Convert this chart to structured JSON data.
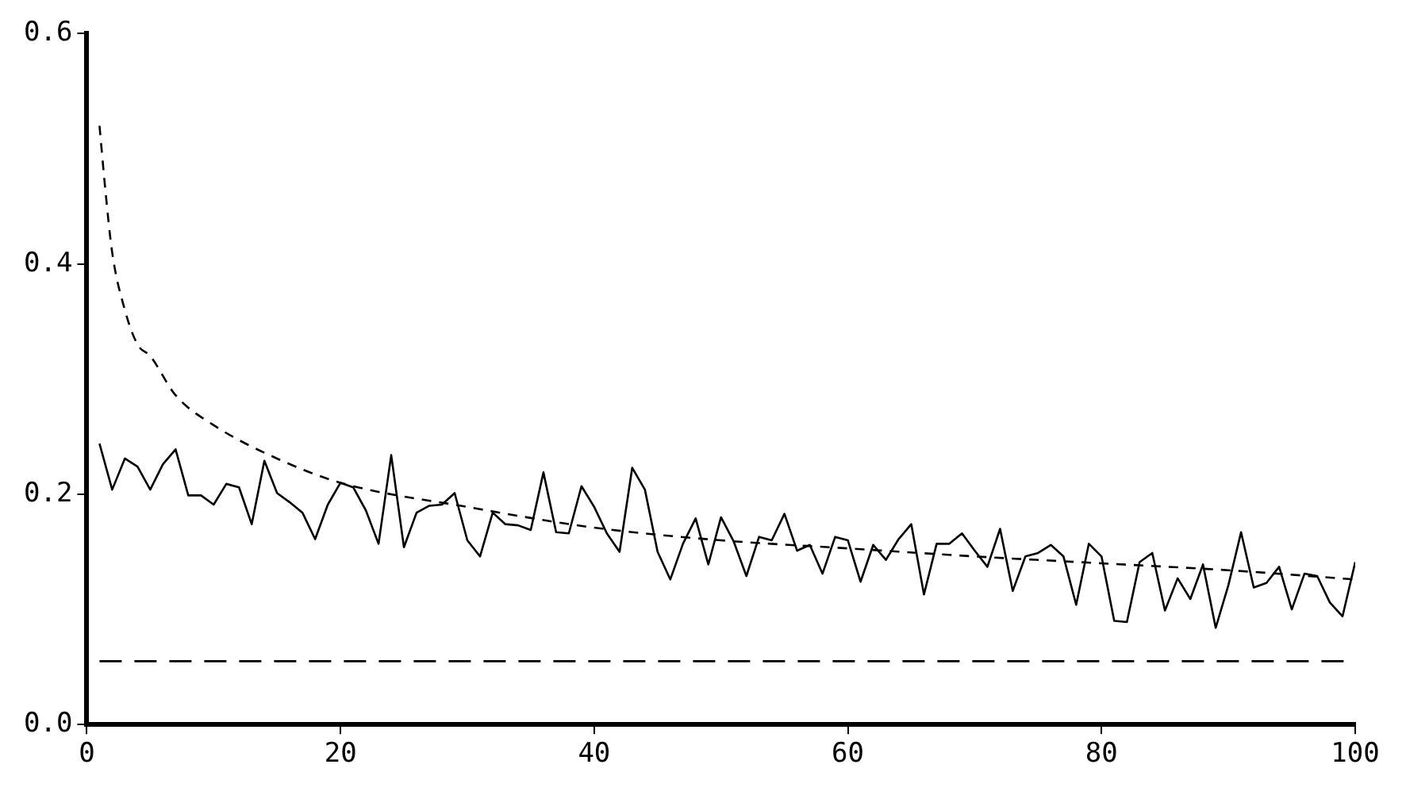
{
  "chart_data": {
    "type": "line",
    "x": [
      1,
      2,
      3,
      4,
      5,
      6,
      7,
      8,
      9,
      10,
      11,
      12,
      13,
      14,
      15,
      16,
      17,
      18,
      19,
      20,
      21,
      22,
      23,
      24,
      25,
      26,
      27,
      28,
      29,
      30,
      31,
      32,
      33,
      34,
      35,
      36,
      37,
      38,
      39,
      40,
      41,
      42,
      43,
      44,
      45,
      46,
      47,
      48,
      49,
      50,
      51,
      52,
      53,
      54,
      55,
      56,
      57,
      58,
      59,
      60,
      61,
      62,
      63,
      64,
      65,
      66,
      67,
      68,
      69,
      70,
      71,
      72,
      73,
      74,
      75,
      76,
      77,
      78,
      79,
      80,
      81,
      82,
      83,
      84,
      85,
      86,
      87,
      88,
      89,
      90,
      91,
      92,
      93,
      94,
      95,
      96,
      97,
      98,
      99,
      100
    ],
    "series": [
      {
        "color": "#000000",
        "line_style": "solid",
        "values": [
          0.244,
          0.204,
          0.231,
          0.224,
          0.204,
          0.226,
          0.239,
          0.199,
          0.199,
          0.191,
          0.209,
          0.206,
          0.174,
          0.229,
          0.201,
          0.193,
          0.184,
          0.161,
          0.191,
          0.21,
          0.206,
          0.186,
          0.157,
          0.234,
          0.154,
          0.184,
          0.19,
          0.191,
          0.201,
          0.16,
          0.146,
          0.184,
          0.174,
          0.173,
          0.169,
          0.219,
          0.167,
          0.166,
          0.207,
          0.189,
          0.166,
          0.15,
          0.223,
          0.204,
          0.15,
          0.126,
          0.157,
          0.179,
          0.139,
          0.18,
          0.159,
          0.129,
          0.163,
          0.16,
          0.183,
          0.151,
          0.156,
          0.131,
          0.163,
          0.16,
          0.124,
          0.156,
          0.143,
          0.161,
          0.174,
          0.113,
          0.157,
          0.157,
          0.166,
          0.151,
          0.137,
          0.17,
          0.116,
          0.146,
          0.149,
          0.156,
          0.146,
          0.104,
          0.157,
          0.146,
          0.09,
          0.089,
          0.141,
          0.149,
          0.099,
          0.127,
          0.109,
          0.139,
          0.084,
          0.121,
          0.167,
          0.119,
          0.123,
          0.137,
          0.1,
          0.131,
          0.129,
          0.106,
          0.094,
          0.141
        ]
      },
      {
        "color": "#000000",
        "line_style": "dashed",
        "x": [
          1,
          1.5,
          2,
          3,
          4,
          5,
          7,
          10,
          15,
          20,
          30,
          40,
          50,
          60,
          70,
          80,
          90,
          100
        ],
        "values": [
          0.52,
          0.46,
          0.41,
          0.36,
          0.33,
          0.32,
          0.286,
          0.26,
          0.231,
          0.21,
          0.189,
          0.171,
          0.16,
          0.153,
          0.146,
          0.14,
          0.134,
          0.126
        ]
      }
    ],
    "ref_lines": [
      {
        "axis": "y",
        "value": 0.055,
        "color": "#000000",
        "line_style": "dashed"
      }
    ],
    "xlim": [
      0,
      100
    ],
    "xticks": [
      0,
      20,
      40,
      60,
      80,
      100
    ],
    "ylim": [
      0,
      0.6
    ],
    "yticks": [
      {
        "value": 0,
        "label": "0.0"
      },
      0.2,
      0.4,
      0.6
    ],
    "grid": false,
    "legend": false,
    "marker": "none"
  }
}
